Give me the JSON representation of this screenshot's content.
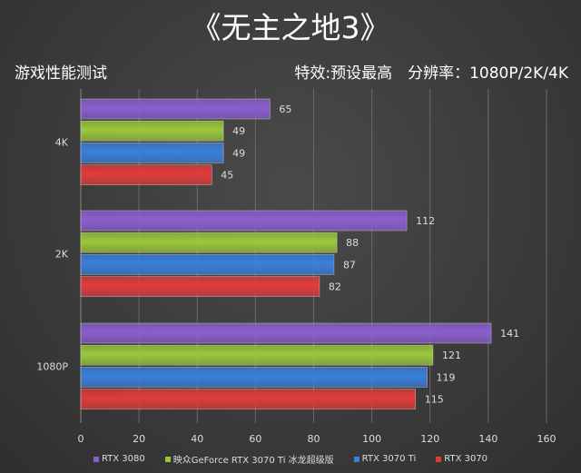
{
  "chart_data": {
    "type": "bar",
    "orientation": "horizontal",
    "title": "《无主之地3》",
    "subtitle_left": "游戏性能测试",
    "subtitle_right": "特效:预设最高　分辨率：1080P/2K/4K",
    "categories": [
      "4K",
      "2K",
      "1080P"
    ],
    "series": [
      {
        "name": "RTX 3080",
        "color": "#8b5fcf",
        "values": [
          65,
          112,
          141
        ]
      },
      {
        "name": "映众GeForce RTX 3070 Ti 冰龙超级版",
        "color": "#9cc83c",
        "values": [
          49,
          88,
          121
        ]
      },
      {
        "name": "RTX 3070 Ti",
        "color": "#3a80dc",
        "values": [
          49,
          87,
          119
        ]
      },
      {
        "name": "RTX 3070",
        "color": "#e23b3b",
        "values": [
          45,
          82,
          115
        ]
      }
    ],
    "xlim": [
      0,
      160
    ],
    "xticks": [
      "0",
      "20",
      "40",
      "60",
      "80",
      "100",
      "120",
      "140",
      "160"
    ],
    "grid": true,
    "legend": "bottom"
  }
}
